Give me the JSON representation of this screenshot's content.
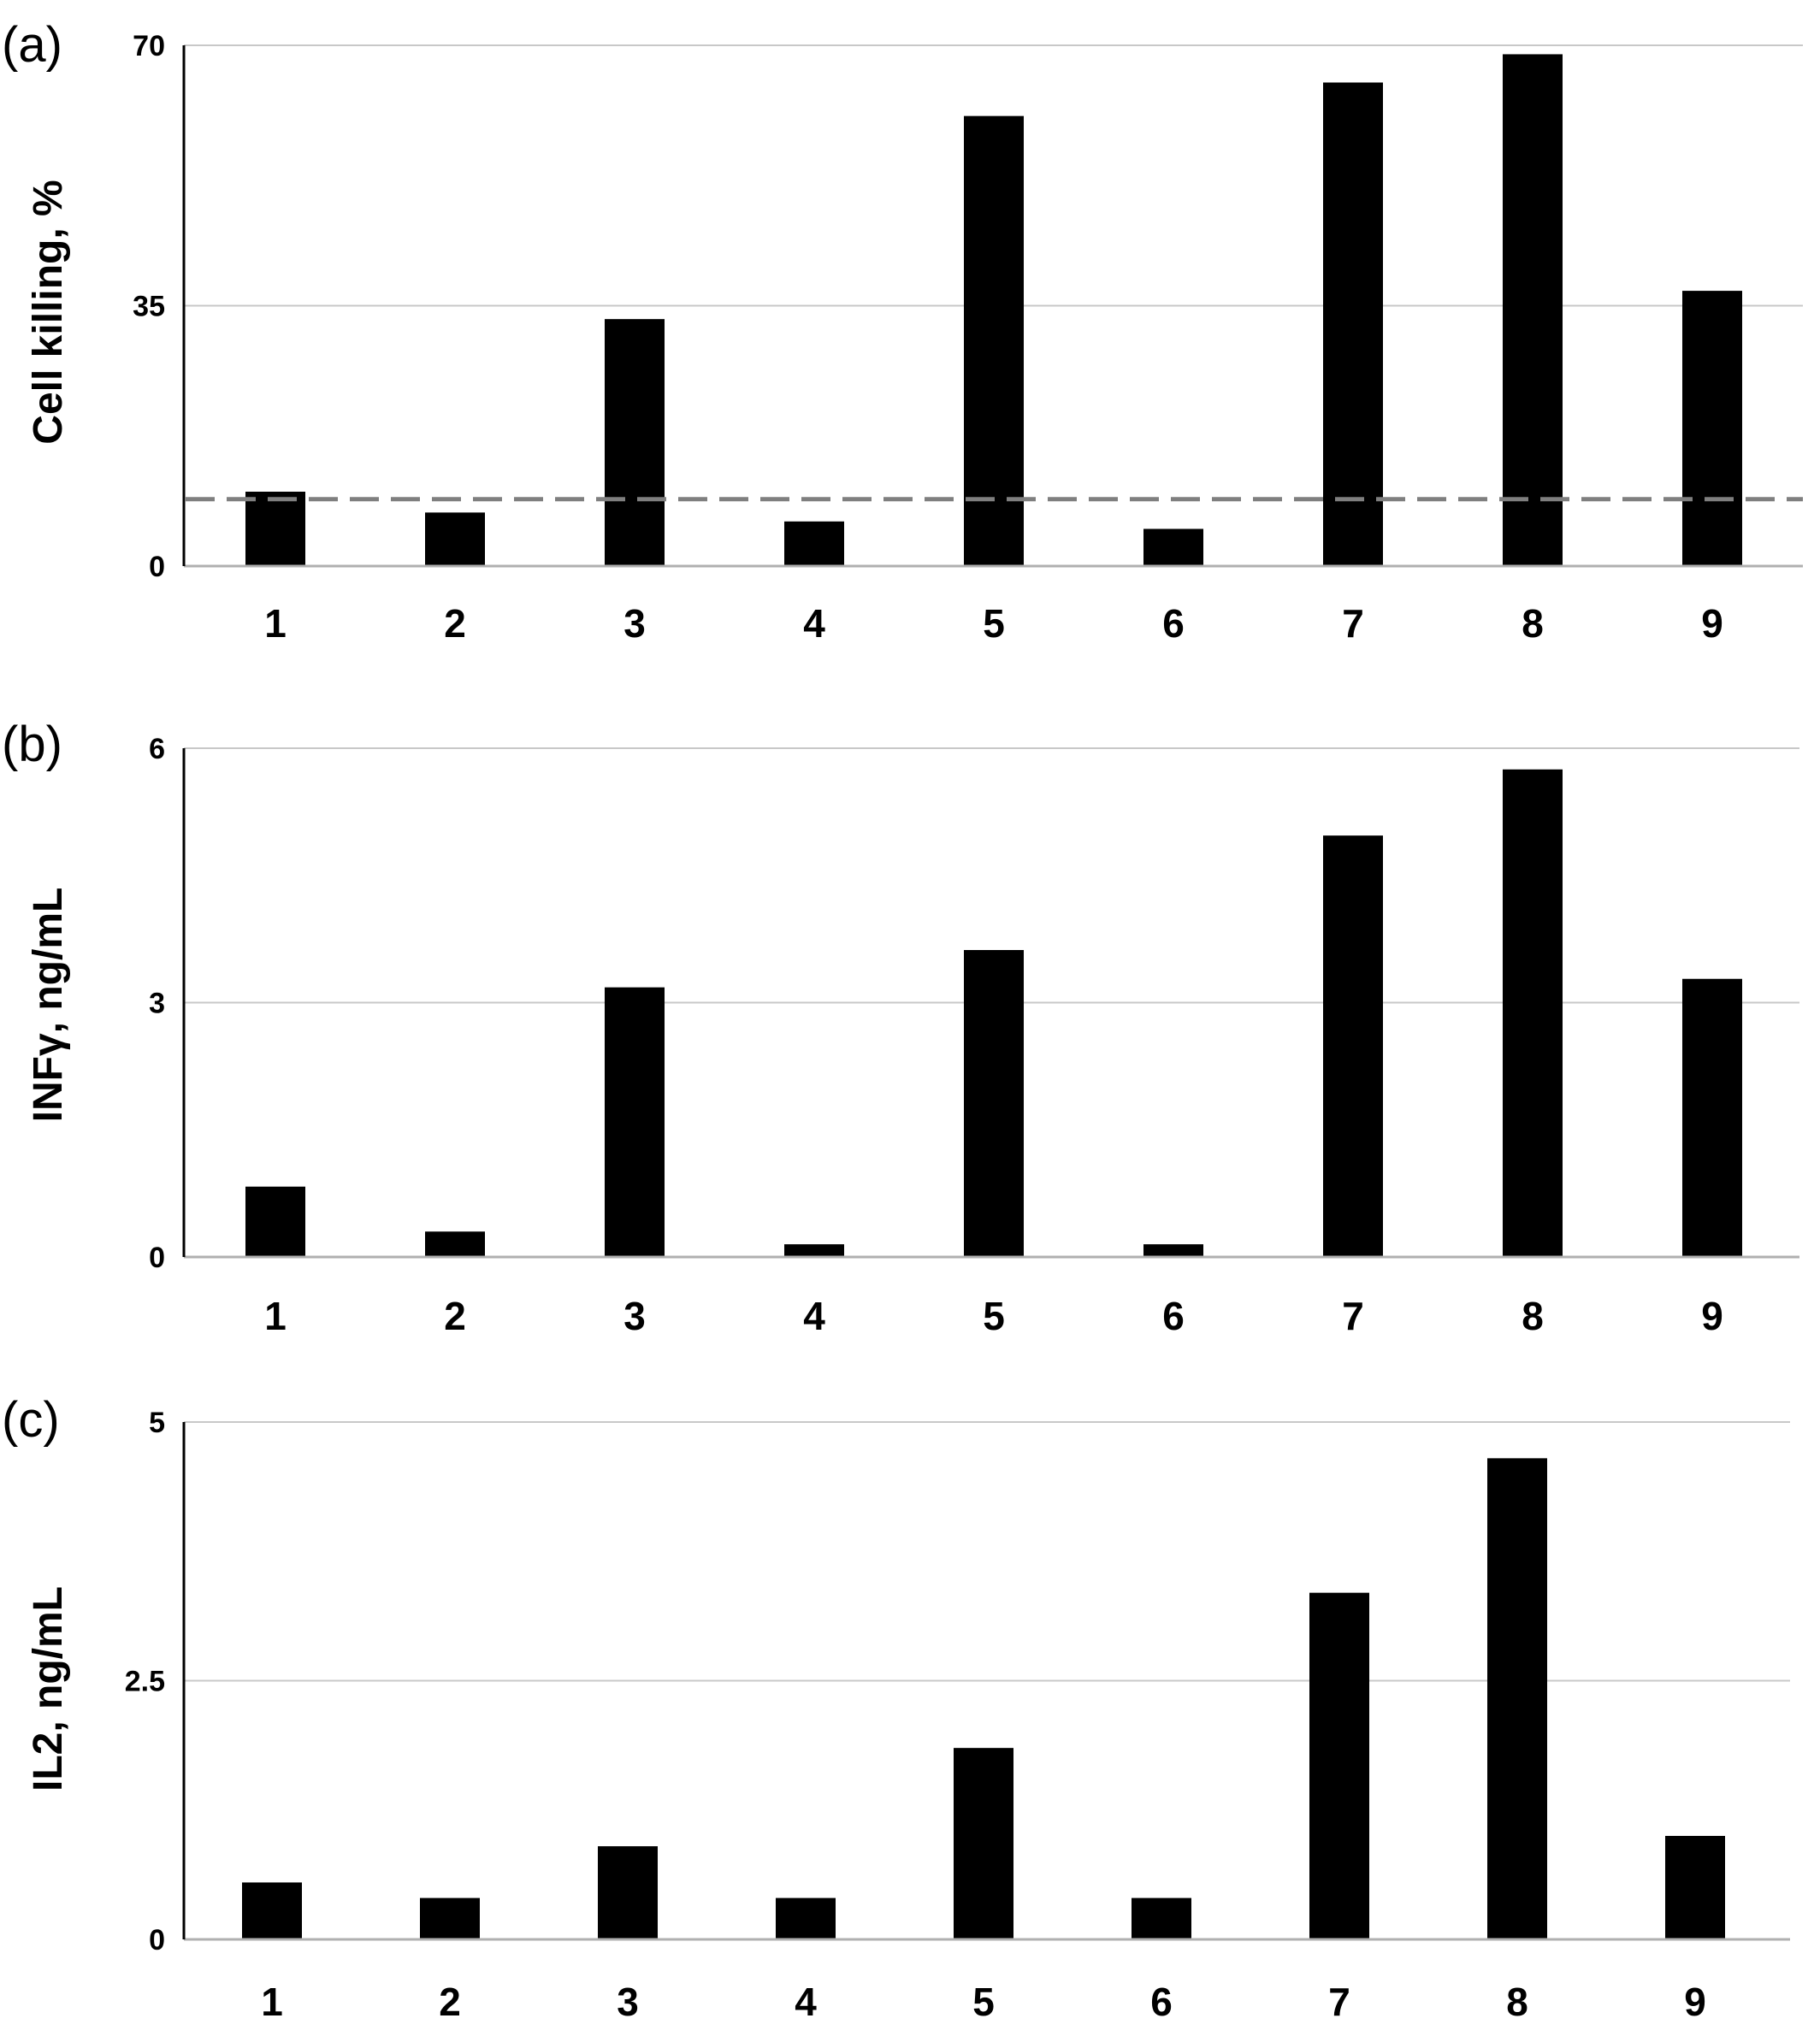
{
  "chart_data": [
    {
      "type": "bar",
      "panel": "(a)",
      "categories": [
        "1",
        "2",
        "3",
        "4",
        "5",
        "6",
        "7",
        "8",
        "9"
      ],
      "values": [
        10,
        7.2,
        33.2,
        6,
        60.5,
        5,
        65,
        68.8,
        37
      ],
      "ylabel": "Cell killing, %",
      "ylim": [
        0,
        70
      ],
      "yticks": [
        "0",
        "35",
        "70"
      ],
      "reference_line": {
        "value": 9,
        "style": "dashed",
        "color": "#7f7f7f"
      },
      "grid": true
    },
    {
      "type": "bar",
      "panel": "(b)",
      "categories": [
        "1",
        "2",
        "3",
        "4",
        "5",
        "6",
        "7",
        "8",
        "9"
      ],
      "values": [
        0.83,
        0.3,
        3.18,
        0.15,
        3.62,
        0.15,
        4.97,
        5.75,
        3.28
      ],
      "ylabel": "INFγ, ng/mL",
      "ylim": [
        0,
        6
      ],
      "yticks": [
        "0",
        "3",
        "6"
      ],
      "grid": true
    },
    {
      "type": "bar",
      "panel": "(c)",
      "categories": [
        "1",
        "2",
        "3",
        "4",
        "5",
        "6",
        "7",
        "8",
        "9"
      ],
      "values": [
        0.55,
        0.4,
        0.9,
        0.4,
        1.85,
        0.4,
        3.35,
        4.65,
        1.0
      ],
      "ylabel": "IL2, ng/mL",
      "ylim": [
        0,
        5
      ],
      "yticks": [
        "0",
        "2.5",
        "5"
      ],
      "grid": true
    }
  ],
  "colors": {
    "bar": "#000000",
    "grid": "#c8c8c8",
    "reference": "#7f7f7f"
  }
}
